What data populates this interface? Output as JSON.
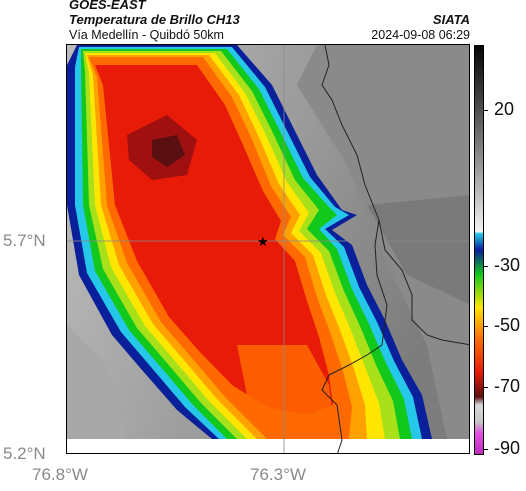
{
  "header": {
    "source": "GOES-EAST",
    "product": "Temperatura de Brillo CH13",
    "subtitle": "Vía Medellín - Quibdó 50km",
    "agency": "SIATA",
    "timestamp": "2024-09-08 06:29"
  },
  "map": {
    "lat_ticks": [
      "5.7°N",
      "5.2°N"
    ],
    "lon_ticks": [
      "76.8°W",
      "76.3°W"
    ],
    "marker": {
      "symbol": "★",
      "name": "station-star"
    }
  },
  "colorbar": {
    "labels": [
      "20",
      "-30",
      "-50",
      "-70",
      "-90"
    ],
    "units_hint": "°C"
  },
  "colors": {
    "coldest": "#e04fe0",
    "very_cold": "#5a1010",
    "red": "#e81a08",
    "orange": "#ff6a00",
    "yellow": "#ffe600",
    "green": "#12c81a",
    "cyan": "#25c8e8",
    "blue": "#0a1f9a",
    "warm_gray": "#8c8c8c"
  }
}
